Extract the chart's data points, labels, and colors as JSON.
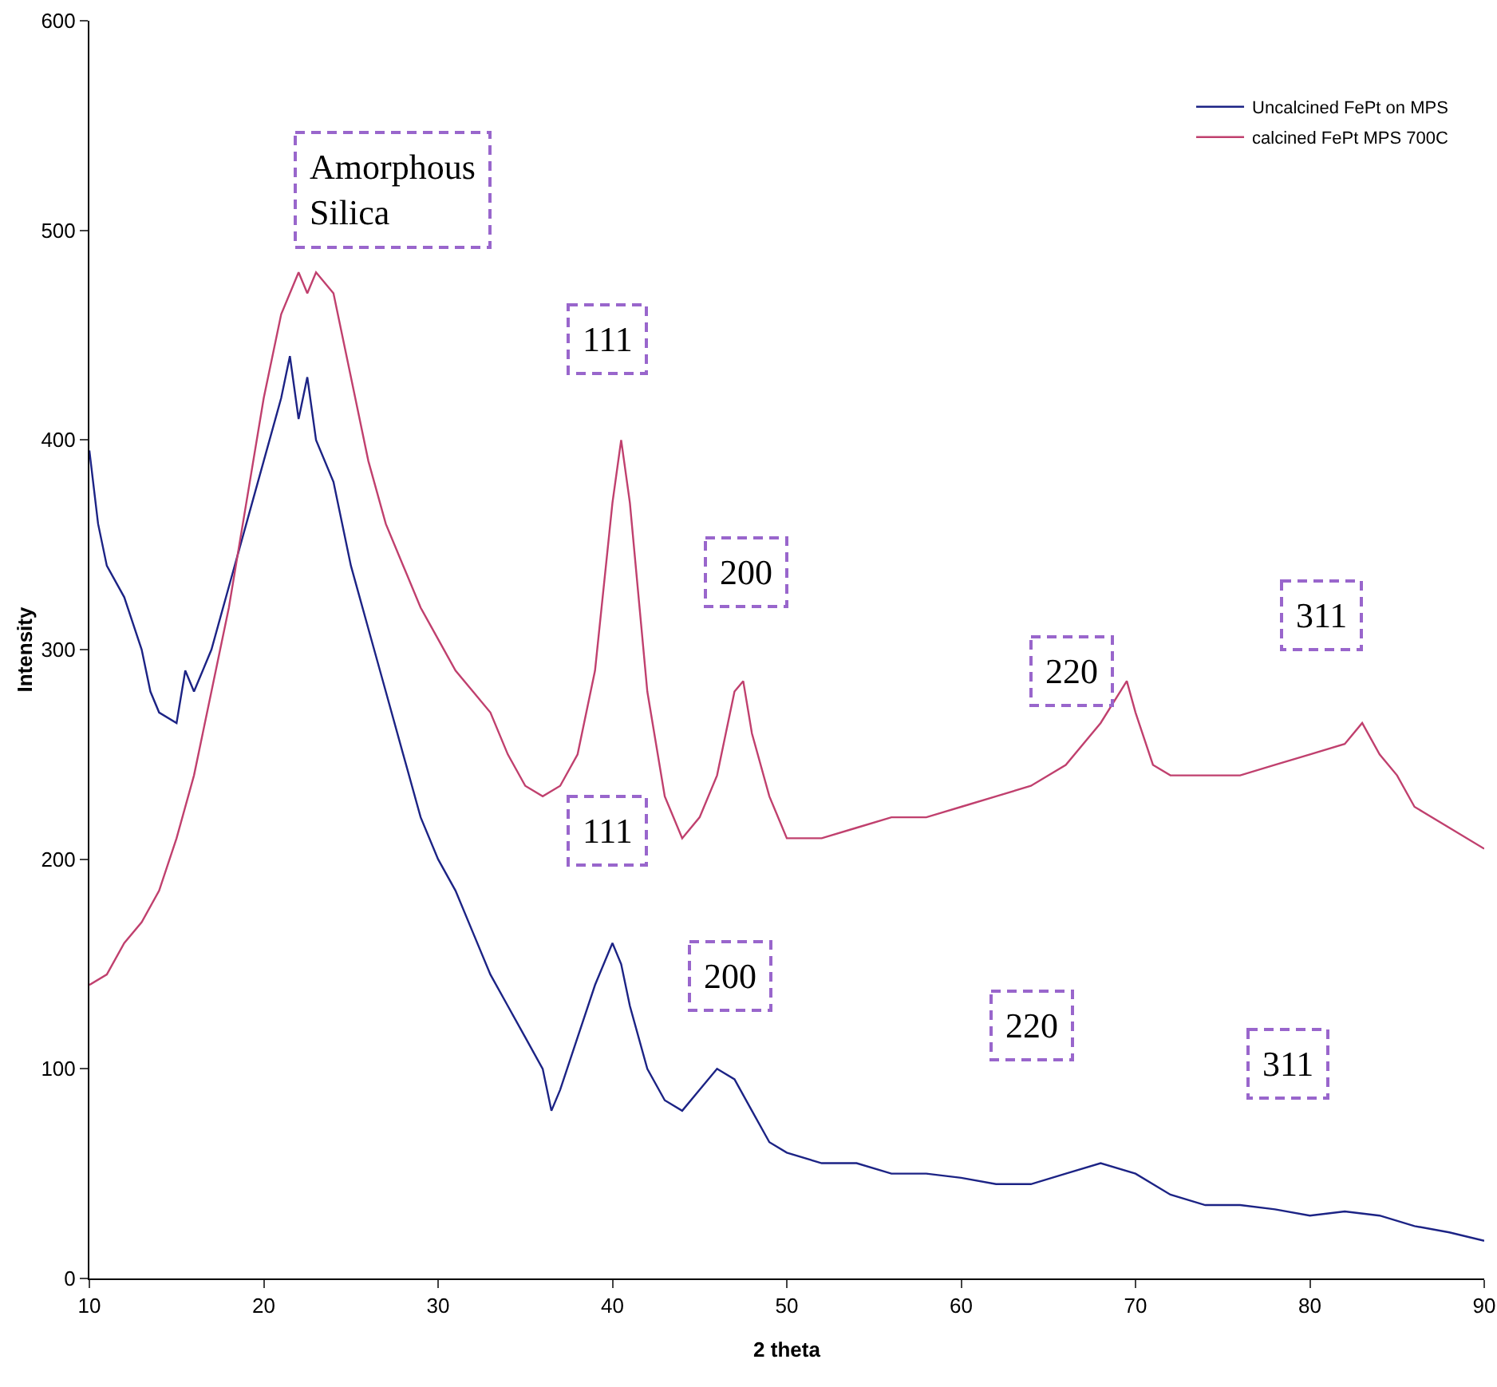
{
  "chart_data": {
    "type": "line",
    "xlabel": "2 theta",
    "ylabel": "Intensity",
    "xlim": [
      10,
      90
    ],
    "xticks": [
      10,
      20,
      30,
      40,
      50,
      60,
      70,
      80,
      90
    ],
    "ylim": [
      0,
      600
    ],
    "yticks": [
      0,
      100,
      200,
      300,
      400,
      500,
      600
    ],
    "grid": false,
    "legend": "top right",
    "marker": "none",
    "line_style": "solid",
    "series": [
      {
        "name": "Uncalcined FePt on MPS",
        "color": "#1c2385",
        "x": [
          10,
          10.5,
          11,
          12,
          13,
          13.5,
          14,
          15,
          15.5,
          16,
          17,
          18,
          19,
          20,
          21,
          21.5,
          22,
          22.5,
          23,
          24,
          25,
          26,
          27,
          28,
          29,
          30,
          31,
          32,
          33,
          34,
          35,
          36,
          36.5,
          37,
          38,
          39,
          40,
          40.5,
          41,
          42,
          43,
          44,
          45,
          46,
          47,
          48,
          49,
          50,
          52,
          54,
          56,
          58,
          60,
          62,
          64,
          66,
          68,
          70,
          72,
          74,
          76,
          78,
          80,
          82,
          84,
          86,
          88,
          90
        ],
        "values": [
          395,
          360,
          340,
          325,
          300,
          280,
          270,
          265,
          290,
          280,
          300,
          330,
          360,
          390,
          420,
          440,
          410,
          430,
          400,
          380,
          340,
          310,
          280,
          250,
          220,
          200,
          185,
          165,
          145,
          130,
          115,
          100,
          80,
          90,
          115,
          140,
          160,
          150,
          130,
          100,
          85,
          80,
          90,
          100,
          95,
          80,
          65,
          60,
          55,
          55,
          50,
          50,
          48,
          45,
          45,
          50,
          55,
          50,
          40,
          35,
          35,
          33,
          30,
          32,
          30,
          25,
          22,
          18
        ]
      },
      {
        "name": "calcined FePt MPS 700C",
        "color": "#c0406e",
        "x": [
          10,
          11,
          12,
          13,
          14,
          15,
          16,
          17,
          18,
          19,
          20,
          21,
          22,
          22.5,
          23,
          24,
          25,
          26,
          27,
          28,
          29,
          30,
          31,
          32,
          33,
          34,
          35,
          36,
          37,
          38,
          39,
          40,
          40.5,
          41,
          42,
          43,
          44,
          45,
          46,
          47,
          47.5,
          48,
          49,
          50,
          52,
          54,
          56,
          58,
          60,
          62,
          64,
          66,
          68,
          69.5,
          70,
          71,
          72,
          74,
          76,
          78,
          80,
          82,
          83,
          84,
          85,
          86,
          88,
          90
        ],
        "values": [
          140,
          145,
          160,
          170,
          185,
          210,
          240,
          280,
          320,
          370,
          420,
          460,
          480,
          470,
          480,
          470,
          430,
          390,
          360,
          340,
          320,
          305,
          290,
          280,
          270,
          250,
          235,
          230,
          235,
          250,
          290,
          370,
          400,
          370,
          280,
          230,
          210,
          220,
          240,
          280,
          285,
          260,
          230,
          210,
          210,
          215,
          220,
          220,
          225,
          230,
          235,
          245,
          265,
          285,
          270,
          245,
          240,
          240,
          240,
          245,
          250,
          255,
          265,
          250,
          240,
          225,
          215,
          205
        ]
      }
    ],
    "annotations": [
      "Amorphous\nSilica",
      "111",
      "200",
      "220",
      "311",
      "111",
      "200",
      "220",
      "311"
    ]
  }
}
